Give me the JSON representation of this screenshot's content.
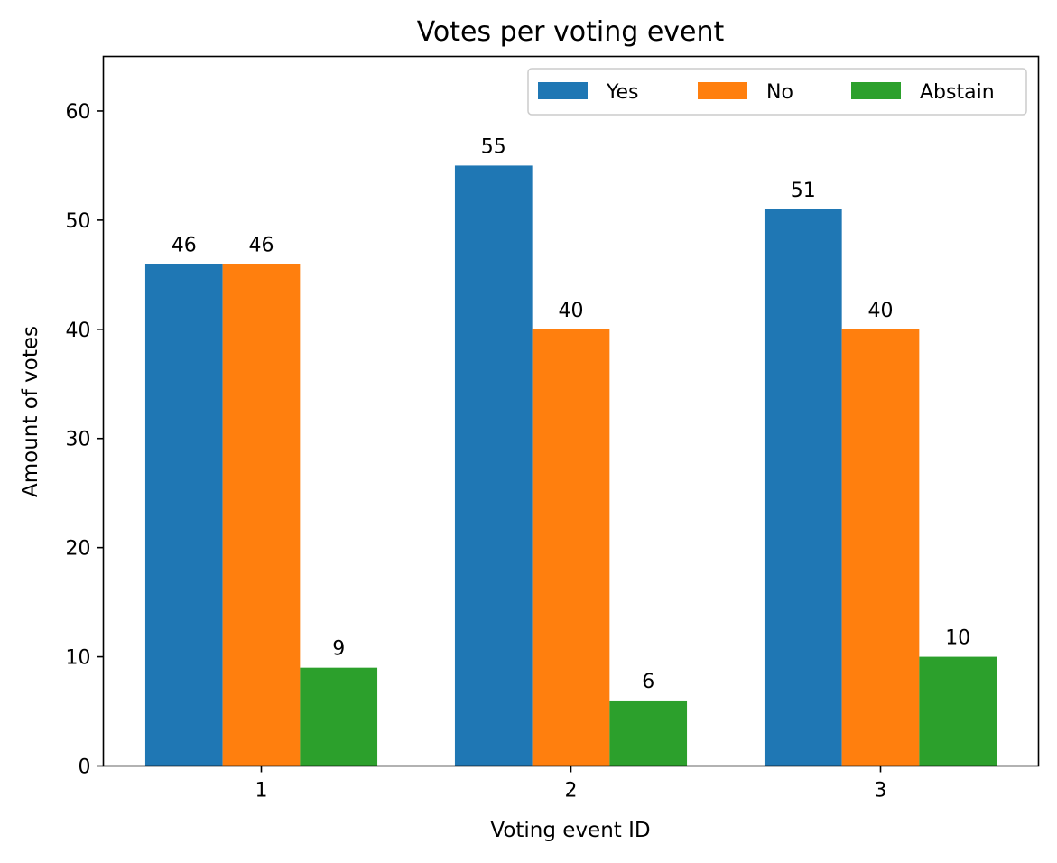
{
  "chart_data": {
    "type": "bar",
    "title": "Votes per voting event",
    "xlabel": "Voting event ID",
    "ylabel": "Amount of votes",
    "categories": [
      "1",
      "2",
      "3"
    ],
    "series": [
      {
        "name": "Yes",
        "color": "#1f77b4",
        "values": [
          46,
          55,
          51
        ]
      },
      {
        "name": "No",
        "color": "#ff7f0e",
        "values": [
          46,
          40,
          40
        ]
      },
      {
        "name": "Abstain",
        "color": "#2ca02c",
        "values": [
          9,
          6,
          10
        ]
      }
    ],
    "ylim": [
      0,
      65
    ],
    "yticks": [
      0,
      10,
      20,
      30,
      40,
      50,
      60
    ],
    "grid": false,
    "legend_position": "top-right",
    "legend_columns": 3,
    "data_labels": true
  }
}
